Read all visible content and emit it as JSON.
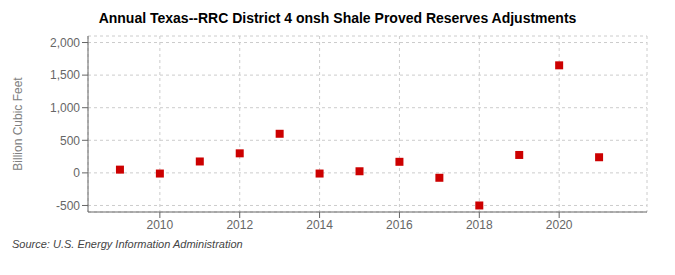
{
  "chart_data": {
    "type": "scatter",
    "title": "Annual Texas--RRC District 4 onsh Shale Proved Reserves Adjustments",
    "ylabel": "Billion Cubic Feet",
    "source": "Source: U.S. Energy Information Administration",
    "x": [
      2009,
      2010,
      2011,
      2012,
      2013,
      2014,
      2015,
      2016,
      2017,
      2018,
      2019,
      2020,
      2021
    ],
    "values": [
      50,
      -10,
      175,
      300,
      600,
      -10,
      25,
      170,
      -75,
      -500,
      275,
      1650,
      240
    ],
    "color": "#cc0000",
    "marker": "square",
    "xlim": [
      2008.2,
      2022.2
    ],
    "xticks": [
      2010,
      2012,
      2014,
      2016,
      2018,
      2020
    ],
    "ylim": [
      -600,
      2100
    ],
    "yticks": [
      -500,
      0,
      500,
      {
        "value": 1000,
        "label": "1,000"
      },
      {
        "value": 1500,
        "label": "1,500"
      },
      {
        "value": 2000,
        "label": "2,000"
      }
    ],
    "grid": true
  }
}
